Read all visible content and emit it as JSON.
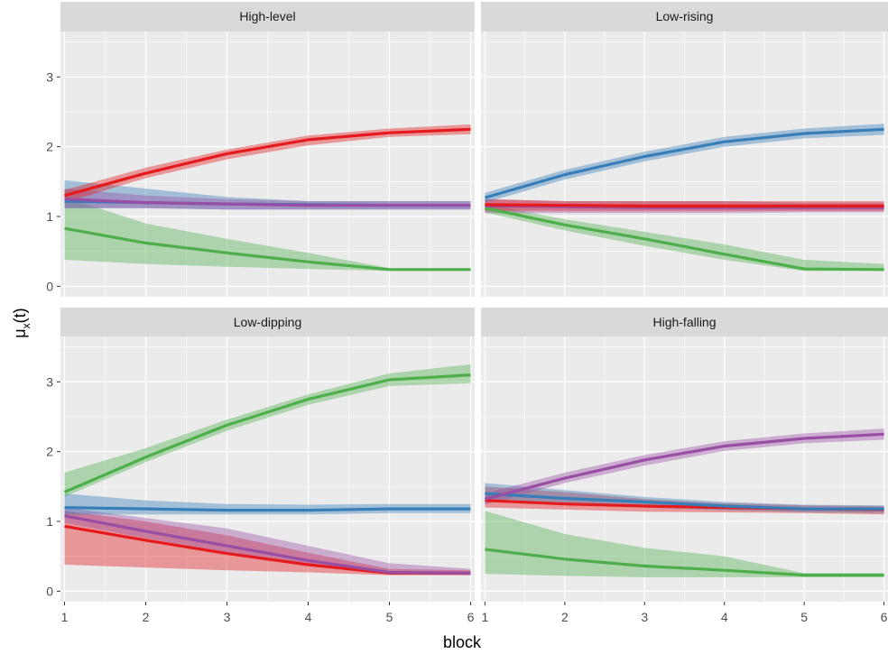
{
  "chart_data": {
    "type": "line",
    "xlabel": "block",
    "ylabel": "μx(t)",
    "ylabel_main": "μ",
    "ylabel_sub": "x",
    "ylabel_tail": "(t)",
    "x": [
      1,
      2,
      3,
      4,
      5,
      6
    ],
    "x_tick_labels": [
      "1",
      "2",
      "3",
      "4",
      "5",
      "6"
    ],
    "y_tick_labels": [
      "0",
      "1",
      "2",
      "3"
    ],
    "xlim": [
      0.95,
      6.05
    ],
    "ylim": [
      -0.15,
      3.65
    ],
    "background_color": "#ebebeb",
    "strip_color": "#d9d9d9",
    "grid": true,
    "colors": {
      "red": "#e41a1c",
      "blue": "#377eb8",
      "green": "#4daf4a",
      "purple": "#984ea3"
    },
    "panels": [
      {
        "title": "High-level",
        "series": [
          {
            "color": "#4daf4a",
            "values": [
              0.83,
              0.62,
              0.48,
              0.35,
              0.24,
              0.24
            ],
            "lower": [
              0.38,
              0.32,
              0.28,
              0.25,
              0.22,
              0.22
            ],
            "upper": [
              1.28,
              0.9,
              0.68,
              0.48,
              0.26,
              0.26
            ]
          },
          {
            "color": "#377eb8",
            "values": [
              1.22,
              1.2,
              1.18,
              1.17,
              1.16,
              1.16
            ],
            "lower": [
              1.12,
              1.12,
              1.1,
              1.1,
              1.1,
              1.1
            ],
            "upper": [
              1.52,
              1.4,
              1.28,
              1.22,
              1.22,
              1.22
            ]
          },
          {
            "color": "#984ea3",
            "values": [
              1.25,
              1.2,
              1.18,
              1.16,
              1.16,
              1.16
            ],
            "lower": [
              1.12,
              1.12,
              1.1,
              1.1,
              1.1,
              1.1
            ],
            "upper": [
              1.4,
              1.3,
              1.25,
              1.22,
              1.22,
              1.22
            ]
          },
          {
            "color": "#e41a1c",
            "values": [
              1.3,
              1.62,
              1.9,
              2.1,
              2.2,
              2.25
            ],
            "lower": [
              1.2,
              1.55,
              1.82,
              2.02,
              2.14,
              2.18
            ],
            "upper": [
              1.38,
              1.7,
              1.96,
              2.16,
              2.26,
              2.32
            ]
          }
        ]
      },
      {
        "title": "Low-rising",
        "series": [
          {
            "color": "#4daf4a",
            "values": [
              1.12,
              0.88,
              0.68,
              0.46,
              0.25,
              0.24
            ],
            "lower": [
              1.06,
              0.8,
              0.58,
              0.38,
              0.22,
              0.22
            ],
            "upper": [
              1.18,
              0.96,
              0.78,
              0.6,
              0.38,
              0.32
            ]
          },
          {
            "color": "#984ea3",
            "values": [
              1.15,
              1.14,
              1.13,
              1.13,
              1.13,
              1.13
            ],
            "lower": [
              1.05,
              1.05,
              1.05,
              1.05,
              1.06,
              1.06
            ],
            "upper": [
              1.25,
              1.22,
              1.22,
              1.22,
              1.2,
              1.2
            ]
          },
          {
            "color": "#e41a1c",
            "values": [
              1.17,
              1.16,
              1.15,
              1.15,
              1.15,
              1.15
            ],
            "lower": [
              1.08,
              1.08,
              1.08,
              1.08,
              1.08,
              1.08
            ],
            "upper": [
              1.25,
              1.22,
              1.22,
              1.22,
              1.22,
              1.22
            ]
          },
          {
            "color": "#377eb8",
            "values": [
              1.27,
              1.6,
              1.86,
              2.07,
              2.19,
              2.25
            ],
            "lower": [
              1.2,
              1.53,
              1.79,
              2.0,
              2.12,
              2.17
            ],
            "upper": [
              1.34,
              1.67,
              1.93,
              2.14,
              2.26,
              2.33
            ]
          }
        ]
      },
      {
        "title": "Low-dipping",
        "series": [
          {
            "color": "#e41a1c",
            "values": [
              0.93,
              0.73,
              0.54,
              0.38,
              0.26,
              0.26
            ],
            "lower": [
              0.38,
              0.34,
              0.3,
              0.27,
              0.23,
              0.23
            ],
            "upper": [
              1.15,
              1.0,
              0.8,
              0.55,
              0.32,
              0.3
            ]
          },
          {
            "color": "#984ea3",
            "values": [
              1.08,
              0.86,
              0.65,
              0.44,
              0.27,
              0.26
            ],
            "lower": [
              0.98,
              0.76,
              0.56,
              0.36,
              0.24,
              0.23
            ],
            "upper": [
              1.2,
              1.05,
              0.9,
              0.65,
              0.4,
              0.32
            ]
          },
          {
            "color": "#377eb8",
            "values": [
              1.2,
              1.18,
              1.16,
              1.16,
              1.18,
              1.18
            ],
            "lower": [
              1.1,
              1.1,
              1.1,
              1.1,
              1.12,
              1.12
            ],
            "upper": [
              1.4,
              1.3,
              1.25,
              1.24,
              1.25,
              1.25
            ]
          },
          {
            "color": "#4daf4a",
            "values": [
              1.42,
              1.92,
              2.38,
              2.75,
              3.03,
              3.1
            ],
            "lower": [
              1.35,
              1.85,
              2.3,
              2.67,
              2.94,
              2.98
            ],
            "upper": [
              1.7,
              2.05,
              2.46,
              2.82,
              3.12,
              3.25
            ]
          }
        ]
      },
      {
        "title": "High-falling",
        "series": [
          {
            "color": "#4daf4a",
            "values": [
              0.6,
              0.46,
              0.36,
              0.3,
              0.23,
              0.23
            ],
            "lower": [
              0.25,
              0.22,
              0.2,
              0.2,
              0.2,
              0.2
            ],
            "upper": [
              1.15,
              0.82,
              0.62,
              0.5,
              0.26,
              0.26
            ]
          },
          {
            "color": "#e41a1c",
            "values": [
              1.3,
              1.25,
              1.22,
              1.2,
              1.18,
              1.17
            ],
            "lower": [
              1.2,
              1.17,
              1.14,
              1.13,
              1.12,
              1.1
            ],
            "upper": [
              1.5,
              1.42,
              1.32,
              1.26,
              1.23,
              1.22
            ]
          },
          {
            "color": "#377eb8",
            "values": [
              1.4,
              1.33,
              1.28,
              1.22,
              1.18,
              1.18
            ],
            "lower": [
              1.3,
              1.24,
              1.2,
              1.16,
              1.13,
              1.12
            ],
            "upper": [
              1.55,
              1.45,
              1.35,
              1.28,
              1.24,
              1.23
            ]
          },
          {
            "color": "#984ea3",
            "values": [
              1.32,
              1.62,
              1.88,
              2.08,
              2.19,
              2.25
            ],
            "lower": [
              1.24,
              1.55,
              1.8,
              2.01,
              2.12,
              2.17
            ],
            "upper": [
              1.4,
              1.7,
              1.95,
              2.15,
              2.26,
              2.33
            ]
          }
        ]
      }
    ]
  }
}
